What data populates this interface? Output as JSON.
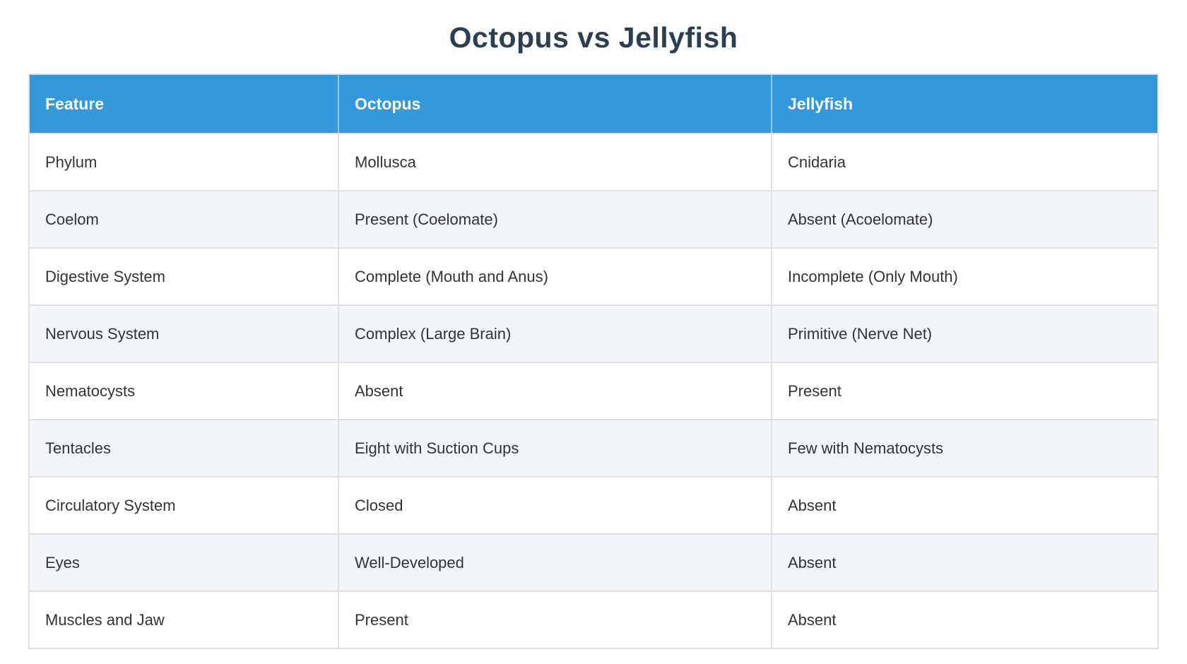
{
  "page": {
    "title": "Octopus vs Jellyfish"
  },
  "colors": {
    "header_bg": "#3498db",
    "header_text": "#ffffff",
    "row_bg": "#ffffff",
    "row_alt_bg": "#f2f5f9",
    "border": "#e0e0e0",
    "title_text": "#2c3e50",
    "cell_text": "#333333"
  },
  "table": {
    "columns": [
      "Feature",
      "Octopus",
      "Jellyfish"
    ],
    "rows": [
      {
        "feature": "Phylum",
        "octopus": "Mollusca",
        "jellyfish": "Cnidaria"
      },
      {
        "feature": "Coelom",
        "octopus": "Present (Coelomate)",
        "jellyfish": "Absent (Acoelomate)"
      },
      {
        "feature": "Digestive System",
        "octopus": "Complete (Mouth and Anus)",
        "jellyfish": "Incomplete (Only Mouth)"
      },
      {
        "feature": "Nervous System",
        "octopus": "Complex (Large Brain)",
        "jellyfish": "Primitive (Nerve Net)"
      },
      {
        "feature": "Nematocysts",
        "octopus": "Absent",
        "jellyfish": "Present"
      },
      {
        "feature": "Tentacles",
        "octopus": "Eight with Suction Cups",
        "jellyfish": "Few with Nematocysts"
      },
      {
        "feature": "Circulatory System",
        "octopus": "Closed",
        "jellyfish": "Absent"
      },
      {
        "feature": "Eyes",
        "octopus": "Well-Developed",
        "jellyfish": "Absent"
      },
      {
        "feature": "Muscles and Jaw",
        "octopus": "Present",
        "jellyfish": "Absent"
      }
    ]
  }
}
